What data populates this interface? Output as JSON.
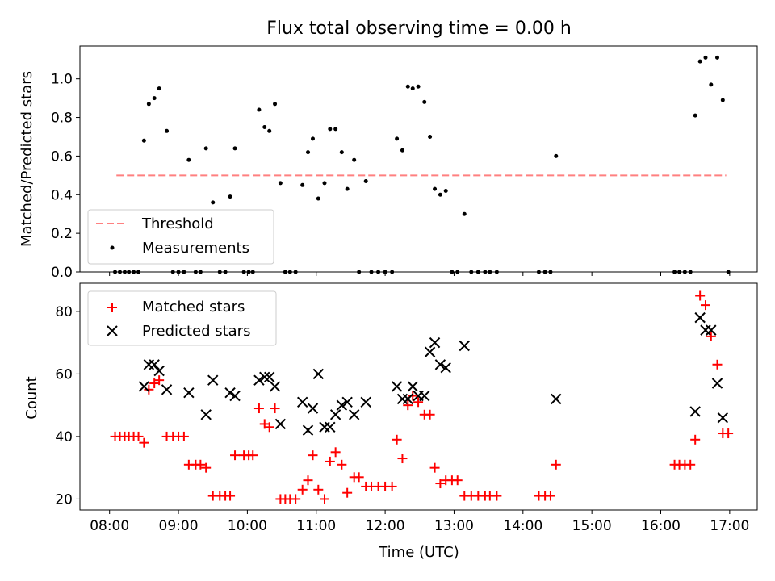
{
  "chart_data": [
    {
      "type": "scatter",
      "title": "Flux total observing time = 0.00 h",
      "xlabel": "",
      "ylabel": "Matched/Predicted stars",
      "xlim": [
        7.57,
        17.4
      ],
      "ylim": [
        0,
        1.17
      ],
      "grid": false,
      "legend_position": "lower-left",
      "yticks": [
        0.0,
        0.2,
        0.4,
        0.6,
        0.8,
        1.0
      ],
      "ytick_labels": [
        "0.0",
        "0.2",
        "0.4",
        "0.6",
        "0.8",
        "1.0"
      ],
      "xticks": [
        8,
        9,
        10,
        11,
        12,
        13,
        14,
        15,
        16,
        17
      ],
      "threshold": {
        "name": "Threshold",
        "y": 0.5,
        "x_start": 8.1,
        "x_end": 16.95,
        "color": "#ff8080"
      },
      "series": [
        {
          "name": "Measurements",
          "color": "#000000",
          "points": [
            [
              8.08,
              0
            ],
            [
              8.15,
              0
            ],
            [
              8.22,
              0
            ],
            [
              8.28,
              0
            ],
            [
              8.35,
              0
            ],
            [
              8.42,
              0
            ],
            [
              8.5,
              0.68
            ],
            [
              8.57,
              0.87
            ],
            [
              8.65,
              0.9
            ],
            [
              8.72,
              0.95
            ],
            [
              8.83,
              0.73
            ],
            [
              8.92,
              0
            ],
            [
              9.0,
              0
            ],
            [
              9.08,
              0
            ],
            [
              9.15,
              0.58
            ],
            [
              9.25,
              0
            ],
            [
              9.32,
              0
            ],
            [
              9.4,
              0.64
            ],
            [
              9.5,
              0.36
            ],
            [
              9.6,
              0
            ],
            [
              9.68,
              0
            ],
            [
              9.75,
              0.39
            ],
            [
              9.82,
              0.64
            ],
            [
              9.95,
              0
            ],
            [
              10.02,
              0
            ],
            [
              10.08,
              0
            ],
            [
              10.17,
              0.84
            ],
            [
              10.25,
              0.75
            ],
            [
              10.32,
              0.73
            ],
            [
              10.4,
              0.87
            ],
            [
              10.48,
              0.46
            ],
            [
              10.55,
              0
            ],
            [
              10.62,
              0
            ],
            [
              10.7,
              0
            ],
            [
              10.8,
              0.45
            ],
            [
              10.88,
              0.62
            ],
            [
              10.95,
              0.69
            ],
            [
              11.03,
              0.38
            ],
            [
              11.12,
              0.46
            ],
            [
              11.2,
              0.74
            ],
            [
              11.28,
              0.74
            ],
            [
              11.37,
              0.62
            ],
            [
              11.45,
              0.43
            ],
            [
              11.55,
              0.58
            ],
            [
              11.62,
              0
            ],
            [
              11.72,
              0.47
            ],
            [
              11.8,
              0
            ],
            [
              11.9,
              0
            ],
            [
              12.0,
              0
            ],
            [
              12.1,
              0
            ],
            [
              12.17,
              0.69
            ],
            [
              12.25,
              0.63
            ],
            [
              12.33,
              0.96
            ],
            [
              12.4,
              0.95
            ],
            [
              12.48,
              0.96
            ],
            [
              12.57,
              0.88
            ],
            [
              12.65,
              0.7
            ],
            [
              12.72,
              0.43
            ],
            [
              12.8,
              0.4
            ],
            [
              12.88,
              0.42
            ],
            [
              12.97,
              0
            ],
            [
              13.05,
              0
            ],
            [
              13.15,
              0.3
            ],
            [
              13.25,
              0
            ],
            [
              13.35,
              0
            ],
            [
              13.45,
              0
            ],
            [
              13.52,
              0
            ],
            [
              13.62,
              0
            ],
            [
              14.23,
              0
            ],
            [
              14.32,
              0
            ],
            [
              14.4,
              0
            ],
            [
              14.48,
              0.6
            ],
            [
              16.2,
              0
            ],
            [
              16.27,
              0
            ],
            [
              16.35,
              0
            ],
            [
              16.43,
              0
            ],
            [
              16.5,
              0.81
            ],
            [
              16.57,
              1.09
            ],
            [
              16.65,
              1.11
            ],
            [
              16.73,
              0.97
            ],
            [
              16.82,
              1.11
            ],
            [
              16.9,
              0.89
            ],
            [
              16.98,
              0
            ]
          ]
        }
      ]
    },
    {
      "type": "scatter",
      "title": "",
      "xlabel": "Time (UTC)",
      "ylabel": "Count",
      "xlim": [
        7.57,
        17.4
      ],
      "ylim": [
        16.5,
        89
      ],
      "grid": false,
      "legend_position": "upper-left",
      "yticks": [
        20,
        40,
        60,
        80
      ],
      "ytick_labels": [
        "20",
        "40",
        "60",
        "80"
      ],
      "xticks": [
        8,
        9,
        10,
        11,
        12,
        13,
        14,
        15,
        16,
        17
      ],
      "xtick_labels": [
        "08:00",
        "09:00",
        "10:00",
        "11:00",
        "12:00",
        "13:00",
        "14:00",
        "15:00",
        "16:00",
        "17:00"
      ],
      "series": [
        {
          "name": "Matched stars",
          "marker": "plus",
          "color": "#ff0000",
          "points": [
            [
              8.08,
              40
            ],
            [
              8.15,
              40
            ],
            [
              8.22,
              40
            ],
            [
              8.28,
              40
            ],
            [
              8.35,
              40
            ],
            [
              8.42,
              40
            ],
            [
              8.5,
              38
            ],
            [
              8.57,
              55
            ],
            [
              8.65,
              57
            ],
            [
              8.72,
              58
            ],
            [
              8.83,
              40
            ],
            [
              8.92,
              40
            ],
            [
              9.0,
              40
            ],
            [
              9.08,
              40
            ],
            [
              9.15,
              31
            ],
            [
              9.25,
              31
            ],
            [
              9.32,
              31
            ],
            [
              9.4,
              30
            ],
            [
              9.5,
              21
            ],
            [
              9.6,
              21
            ],
            [
              9.68,
              21
            ],
            [
              9.75,
              21
            ],
            [
              9.82,
              34
            ],
            [
              9.95,
              34
            ],
            [
              10.02,
              34
            ],
            [
              10.08,
              34
            ],
            [
              10.17,
              49
            ],
            [
              10.25,
              44
            ],
            [
              10.32,
              43
            ],
            [
              10.4,
              49
            ],
            [
              10.48,
              20
            ],
            [
              10.55,
              20
            ],
            [
              10.62,
              20
            ],
            [
              10.7,
              20
            ],
            [
              10.8,
              23
            ],
            [
              10.88,
              26
            ],
            [
              10.95,
              34
            ],
            [
              11.03,
              23
            ],
            [
              11.12,
              20
            ],
            [
              11.2,
              32
            ],
            [
              11.28,
              35
            ],
            [
              11.37,
              31
            ],
            [
              11.45,
              22
            ],
            [
              11.55,
              27
            ],
            [
              11.62,
              27
            ],
            [
              11.72,
              24
            ],
            [
              11.8,
              24
            ],
            [
              11.9,
              24
            ],
            [
              12.0,
              24
            ],
            [
              12.1,
              24
            ],
            [
              12.17,
              39
            ],
            [
              12.25,
              33
            ],
            [
              12.33,
              50
            ],
            [
              12.4,
              53
            ],
            [
              12.48,
              51
            ],
            [
              12.57,
              47
            ],
            [
              12.65,
              47
            ],
            [
              12.72,
              30
            ],
            [
              12.8,
              25
            ],
            [
              12.88,
              26
            ],
            [
              12.97,
              26
            ],
            [
              13.05,
              26
            ],
            [
              13.15,
              21
            ],
            [
              13.25,
              21
            ],
            [
              13.35,
              21
            ],
            [
              13.45,
              21
            ],
            [
              13.52,
              21
            ],
            [
              13.62,
              21
            ],
            [
              14.23,
              21
            ],
            [
              14.32,
              21
            ],
            [
              14.4,
              21
            ],
            [
              14.48,
              31
            ],
            [
              16.2,
              31
            ],
            [
              16.27,
              31
            ],
            [
              16.35,
              31
            ],
            [
              16.43,
              31
            ],
            [
              16.5,
              39
            ],
            [
              16.57,
              85
            ],
            [
              16.65,
              82
            ],
            [
              16.73,
              72
            ],
            [
              16.82,
              63
            ],
            [
              16.9,
              41
            ],
            [
              16.98,
              41
            ]
          ]
        },
        {
          "name": "Predicted stars",
          "marker": "x",
          "color": "#000000",
          "points": [
            [
              8.5,
              56
            ],
            [
              8.57,
              63
            ],
            [
              8.65,
              63
            ],
            [
              8.72,
              61
            ],
            [
              8.83,
              55
            ],
            [
              9.15,
              54
            ],
            [
              9.4,
              47
            ],
            [
              9.5,
              58
            ],
            [
              9.75,
              54
            ],
            [
              9.82,
              53
            ],
            [
              10.17,
              58
            ],
            [
              10.25,
              59
            ],
            [
              10.32,
              59
            ],
            [
              10.4,
              56
            ],
            [
              10.48,
              44
            ],
            [
              10.8,
              51
            ],
            [
              10.88,
              42
            ],
            [
              10.95,
              49
            ],
            [
              11.03,
              60
            ],
            [
              11.12,
              43
            ],
            [
              11.2,
              43
            ],
            [
              11.28,
              47
            ],
            [
              11.37,
              50
            ],
            [
              11.45,
              51
            ],
            [
              11.55,
              47
            ],
            [
              11.72,
              51
            ],
            [
              12.17,
              56
            ],
            [
              12.25,
              52
            ],
            [
              12.33,
              52
            ],
            [
              12.4,
              56
            ],
            [
              12.48,
              53
            ],
            [
              12.57,
              53
            ],
            [
              12.65,
              67
            ],
            [
              12.72,
              70
            ],
            [
              12.8,
              63
            ],
            [
              12.88,
              62
            ],
            [
              13.15,
              69
            ],
            [
              14.48,
              52
            ],
            [
              16.5,
              48
            ],
            [
              16.57,
              78
            ],
            [
              16.65,
              74
            ],
            [
              16.73,
              74
            ],
            [
              16.82,
              57
            ],
            [
              16.9,
              46
            ]
          ]
        }
      ]
    }
  ]
}
